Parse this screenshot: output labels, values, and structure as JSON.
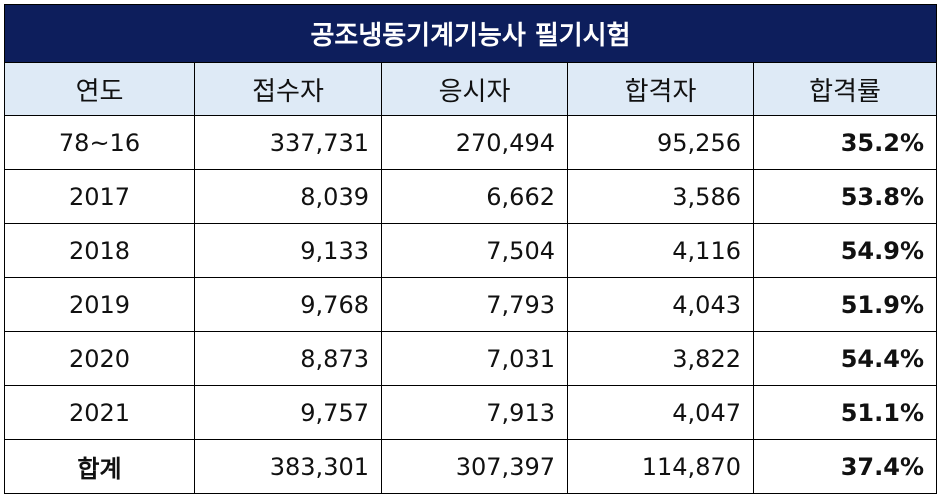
{
  "title": "공조냉동기계기능사 필기시험",
  "columns": [
    "연도",
    "접수자",
    "응시자",
    "합격자",
    "합격률"
  ],
  "rows": [
    {
      "year": "78~16",
      "applicants": "337,731",
      "examinees": "270,494",
      "passers": "95,256",
      "rate": "35.2%"
    },
    {
      "year": "2017",
      "applicants": "8,039",
      "examinees": "6,662",
      "passers": "3,586",
      "rate": "53.8%"
    },
    {
      "year": "2018",
      "applicants": "9,133",
      "examinees": "7,504",
      "passers": "4,116",
      "rate": "54.9%"
    },
    {
      "year": "2019",
      "applicants": "9,768",
      "examinees": "7,793",
      "passers": "4,043",
      "rate": "51.9%"
    },
    {
      "year": "2020",
      "applicants": "8,873",
      "examinees": "7,031",
      "passers": "3,822",
      "rate": "54.4%"
    },
    {
      "year": "2021",
      "applicants": "9,757",
      "examinees": "7,913",
      "passers": "4,047",
      "rate": "51.1%"
    }
  ],
  "total": {
    "label": "합계",
    "applicants": "383,301",
    "examinees": "307,397",
    "passers": "114,870",
    "rate": "37.4%"
  },
  "colors": {
    "title_bg": "#0d1e5c",
    "title_fg": "#ffffff",
    "header_bg": "#deeaf6",
    "border": "#000000"
  }
}
